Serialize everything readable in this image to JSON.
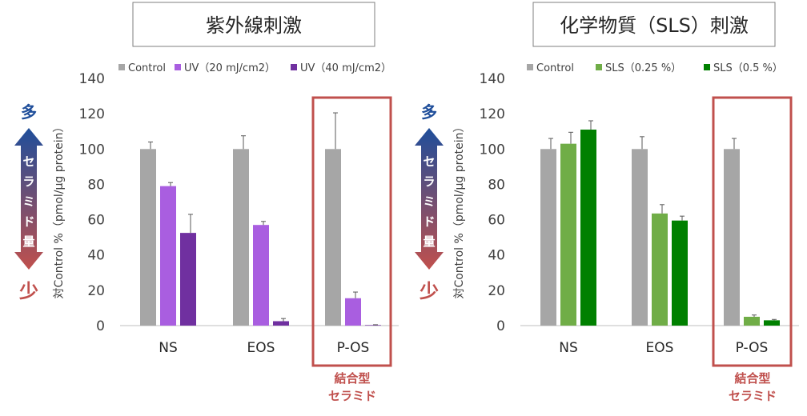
{
  "panels": [
    {
      "title": "紫外線刺激",
      "indicator": {
        "top": "多",
        "mid": "セラミド量",
        "bottom": "少"
      },
      "highlight_label": [
        "結合型",
        "セラミド"
      ],
      "highlight_category": "P-OS"
    },
    {
      "title": "化学物質（SLS）刺激",
      "indicator": {
        "top": "多",
        "mid": "セラミド量",
        "bottom": "少"
      },
      "highlight_label": [
        "結合型",
        "セラミド"
      ],
      "highlight_category": "P-OS"
    }
  ],
  "colors": {
    "control": "#a6a6a6",
    "uv20": "#a95ee0",
    "uv40": "#7030a0",
    "sls025": "#70ad47",
    "sls05": "#008000",
    "highlight": "#c0504d",
    "arrow_top": "#1f4e9a",
    "arrow_bottom": "#c0504d"
  },
  "chart_data": [
    {
      "type": "bar",
      "ylabel": "対Control %（pmol/μg protein）",
      "ylim": [
        0,
        140
      ],
      "yticks": [
        0,
        20,
        40,
        60,
        80,
        100,
        120,
        140
      ],
      "categories": [
        "NS",
        "EOS",
        "P-OS"
      ],
      "legend_position": "top",
      "series": [
        {
          "name": "Control",
          "color_key": "control",
          "values": [
            100,
            100,
            100
          ],
          "errors": [
            4,
            7.5,
            20.5
          ]
        },
        {
          "name": "UV（20 mJ/cm2）",
          "color_key": "uv20",
          "values": [
            79,
            57,
            15.5
          ],
          "errors": [
            2,
            2,
            3.5
          ]
        },
        {
          "name": "UV（40 mJ/cm2）",
          "color_key": "uv40",
          "values": [
            52.5,
            2.5,
            0.3
          ],
          "errors": [
            10.5,
            1.5,
            0.2
          ]
        }
      ]
    },
    {
      "type": "bar",
      "ylabel": "対Control %（pmol/μg protein）",
      "ylim": [
        0,
        140
      ],
      "yticks": [
        0,
        20,
        40,
        60,
        80,
        100,
        120,
        140
      ],
      "categories": [
        "NS",
        "EOS",
        "P-OS"
      ],
      "legend_position": "top",
      "series": [
        {
          "name": "Control",
          "color_key": "control",
          "values": [
            100,
            100,
            100
          ],
          "errors": [
            6,
            7,
            6
          ]
        },
        {
          "name": "SLS（0.25 %）",
          "color_key": "sls025",
          "values": [
            103,
            63.5,
            5
          ],
          "errors": [
            6.5,
            5,
            1
          ]
        },
        {
          "name": "SLS（0.5 %）",
          "color_key": "sls05",
          "values": [
            111,
            59.5,
            3
          ],
          "errors": [
            5,
            2.5,
            0.5
          ]
        }
      ]
    }
  ]
}
